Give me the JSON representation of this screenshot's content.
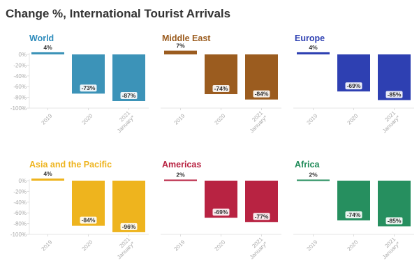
{
  "chart_data": {
    "type": "bar",
    "title": "Change %, International Tourist Arrivals",
    "categories": [
      "2019",
      "2020",
      "2021 January*"
    ],
    "category_lines": [
      [
        "2019"
      ],
      [
        "2020"
      ],
      [
        "2021",
        "January*"
      ]
    ],
    "ylim": [
      -100,
      0
    ],
    "yticks": [
      0,
      -20,
      -40,
      -60,
      -80,
      -100
    ],
    "ytick_labels": [
      "0%",
      "-20%",
      "-40%",
      "-60%",
      "-80%",
      "-100%"
    ],
    "panels": [
      {
        "name": "World",
        "color": "#3c93b8",
        "title_color": "#2f8cbc",
        "values": [
          4,
          -73,
          -87
        ],
        "labels": [
          "4%",
          "-73%",
          "-87%"
        ]
      },
      {
        "name": "Middle East",
        "color": "#9b5c1f",
        "title_color": "#9b5c1f",
        "values": [
          7,
          -74,
          -84
        ],
        "labels": [
          "7%",
          "-74%",
          "-84%"
        ]
      },
      {
        "name": "Europe",
        "color": "#2e40b2",
        "title_color": "#2e40b2",
        "values": [
          4,
          -69,
          -85
        ],
        "labels": [
          "4%",
          "-69%",
          "-85%"
        ]
      },
      {
        "name": "Asia and the Pacific",
        "color": "#eeb41e",
        "title_color": "#eeb41e",
        "values": [
          4,
          -84,
          -96
        ],
        "labels": [
          "4%",
          "-84%",
          "-96%"
        ]
      },
      {
        "name": "Americas",
        "color": "#b82342",
        "title_color": "#b82342",
        "values": [
          2,
          -69,
          -77
        ],
        "labels": [
          "2%",
          "-69%",
          "-77%"
        ]
      },
      {
        "name": "Africa",
        "color": "#268f5f",
        "title_color": "#1f8a58",
        "values": [
          2,
          -74,
          -85
        ],
        "labels": [
          "2%",
          "-74%",
          "-85%"
        ]
      }
    ]
  }
}
